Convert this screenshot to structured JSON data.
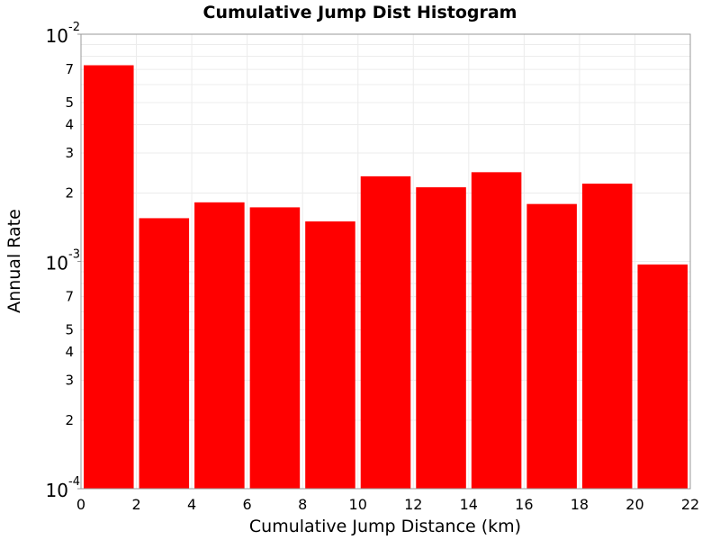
{
  "chart_data": {
    "type": "bar",
    "title": "Cumulative Jump Dist Histogram",
    "xlabel": "Cumulative Jump Distance (km)",
    "ylabel": "Annual Rate",
    "bar_color": "#ff0000",
    "grid": true,
    "y_scale": "log",
    "xlim": [
      0,
      22
    ],
    "ylim": [
      0.0001,
      0.01
    ],
    "x_ticks": [
      0,
      2,
      4,
      6,
      8,
      10,
      12,
      14,
      16,
      18,
      20,
      22
    ],
    "y_major_ticks": [
      {
        "value": 0.0001,
        "base": "10",
        "exp": "-4"
      },
      {
        "value": 0.001,
        "base": "10",
        "exp": "-3"
      },
      {
        "value": 0.01,
        "base": "10",
        "exp": "-2"
      }
    ],
    "y_minor_labels": [
      2,
      3,
      4,
      5,
      7
    ],
    "bins": [
      {
        "x0": 0,
        "x1": 2,
        "value": 0.0073
      },
      {
        "x0": 2,
        "x1": 4,
        "value": 0.00155
      },
      {
        "x0": 4,
        "x1": 6,
        "value": 0.00182
      },
      {
        "x0": 6,
        "x1": 8,
        "value": 0.00173
      },
      {
        "x0": 8,
        "x1": 10,
        "value": 0.0015
      },
      {
        "x0": 10,
        "x1": 12,
        "value": 0.00237
      },
      {
        "x0": 12,
        "x1": 14,
        "value": 0.00212
      },
      {
        "x0": 14,
        "x1": 16,
        "value": 0.00247
      },
      {
        "x0": 16,
        "x1": 18,
        "value": 0.00179
      },
      {
        "x0": 18,
        "x1": 20,
        "value": 0.0022
      },
      {
        "x0": 20,
        "x1": 22,
        "value": 0.00097
      }
    ]
  }
}
